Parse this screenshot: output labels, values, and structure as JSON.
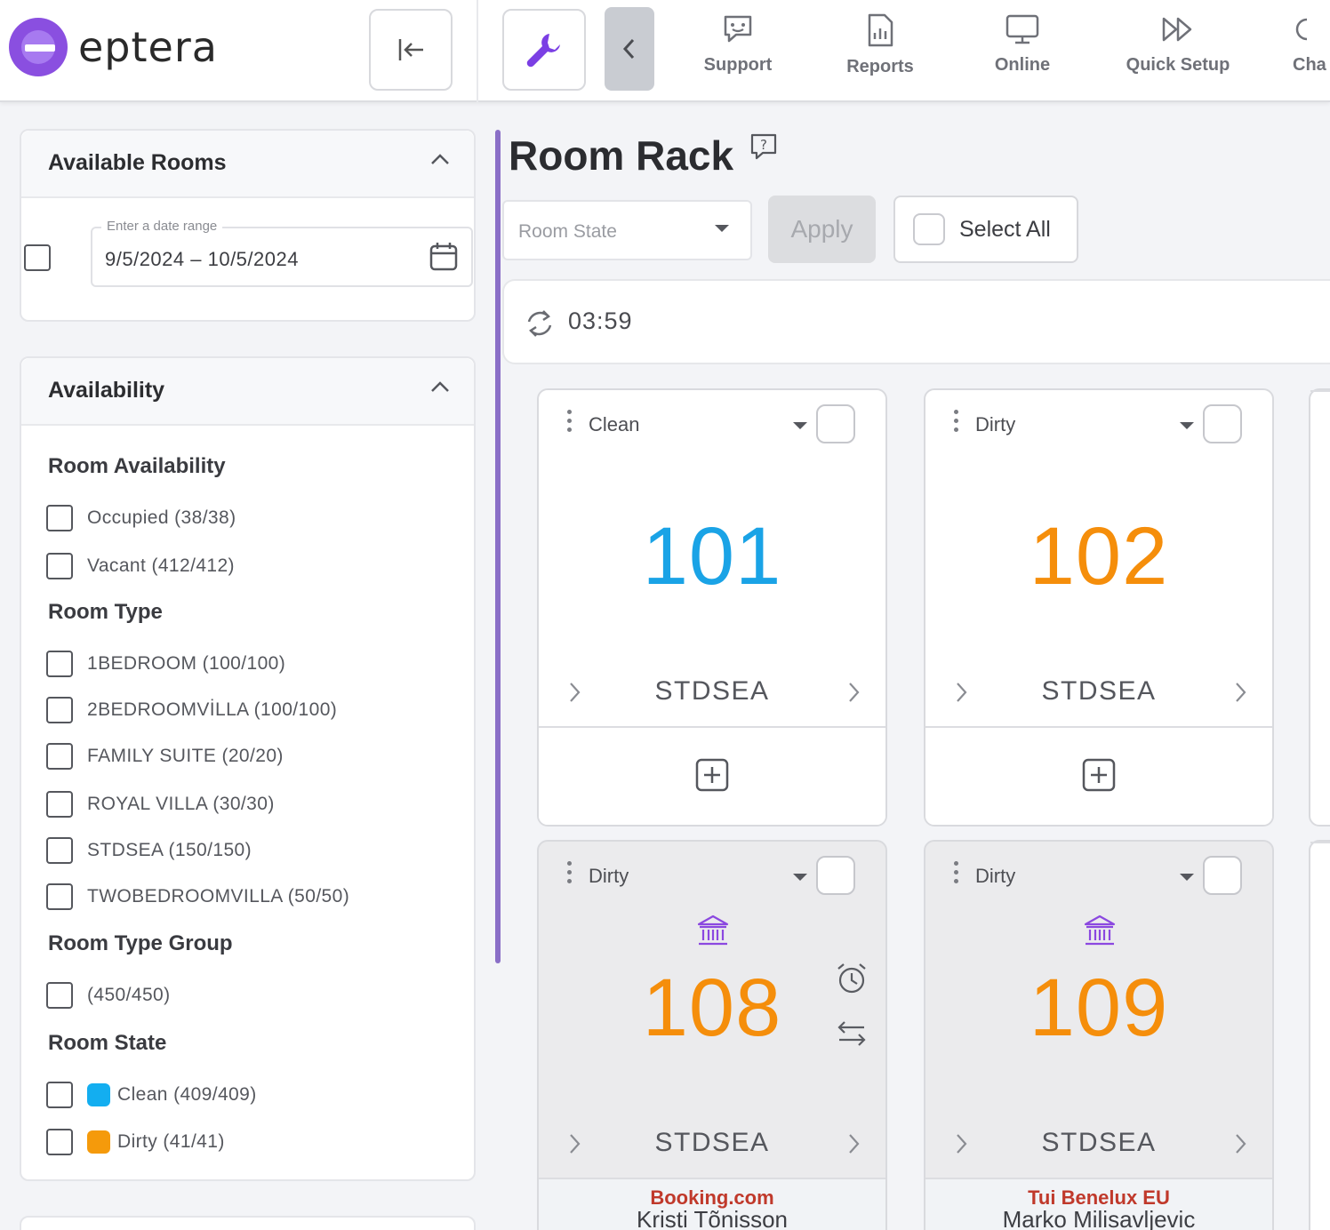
{
  "app": {
    "logo_text": "eptera",
    "brand_color": "#8a4fe0"
  },
  "topbar": {
    "collapse_icon": "collapse-left-icon",
    "tools_icon": "wrench-icon",
    "back_icon": "chevron-left-icon",
    "nav": [
      {
        "label": "Support",
        "icon": "support-chat-icon"
      },
      {
        "label": "Reports",
        "icon": "report-chart-icon"
      },
      {
        "label": "Online",
        "icon": "monitor-icon"
      },
      {
        "label": "Quick Setup",
        "icon": "fast-forward-icon"
      },
      {
        "label": "Cha",
        "icon": "channel-icon"
      }
    ]
  },
  "sidebar": {
    "available_rooms": {
      "title": "Available Rooms",
      "date_label": "Enter a date range",
      "date_value": "9/5/2024 – 10/5/2024"
    },
    "availability": {
      "title": "Availability",
      "room_availability": {
        "title": "Room Availability",
        "options": [
          "Occupied (38/38)",
          "Vacant (412/412)"
        ]
      },
      "room_type": {
        "title": "Room Type",
        "options": [
          "1BEDROOM (100/100)",
          "2BEDROOMVİLLA (100/100)",
          "FAMILY SUITE (20/20)",
          "ROYAL VILLA (30/30)",
          "STDSEA (150/150)",
          "TWOBEDROOMVILLA (50/50)"
        ]
      },
      "room_type_group": {
        "title": "Room Type Group",
        "options": [
          "(450/450)"
        ]
      },
      "room_state": {
        "title": "Room State",
        "options": [
          {
            "label": "Clean (409/409)",
            "color": "#13aef0"
          },
          {
            "label": "Dirty (41/41)",
            "color": "#f59a0b"
          }
        ]
      }
    }
  },
  "main": {
    "title": "Room Rack",
    "room_state_placeholder": "Room State",
    "apply_label": "Apply",
    "select_all_label": "Select All",
    "timer": "03:59",
    "rooms": [
      {
        "state": "Clean",
        "number": "101",
        "type": "STDSEA",
        "status": "clean"
      },
      {
        "state": "Dirty",
        "number": "102",
        "type": "STDSEA",
        "status": "dirty"
      },
      {
        "state": "Dirty",
        "number": "108",
        "type": "STDSEA",
        "status": "dirty",
        "source": "Booking.com",
        "guest": "Kristi Tõnisson"
      },
      {
        "state": "Dirty",
        "number": "109",
        "type": "STDSEA",
        "status": "dirty",
        "source": "Tui Benelux EU",
        "guest": "Marko Milisavljevic"
      }
    ]
  }
}
